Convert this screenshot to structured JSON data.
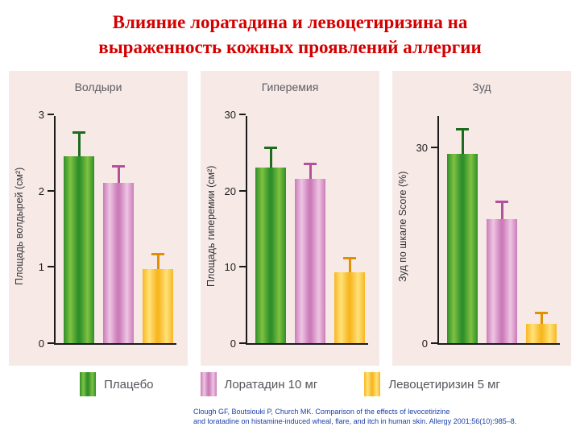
{
  "title": {
    "line1": "Влияние лоратадина и левоцетиризина на",
    "line2": "выраженность кожных проявлений аллергии",
    "color": "#d40000"
  },
  "citation": {
    "line1": "Clough GF, Boutsiouki P, Church MK. Comparison of the effects of levocetirizine",
    "line2": "and loratadine on histamine-induced wheal, flare, and itch in human skin. Allergy 2001;56(10):985–8.",
    "color": "#1b3faa"
  },
  "panel_bg": "#f7eae6",
  "legend": [
    {
      "key": "placebo",
      "label": "Плацебо",
      "light": "#7fc241",
      "dark": "#2f8f2b",
      "error": "#1d6b1d"
    },
    {
      "key": "loratadine-10mg",
      "label": "Лоратадин 10 мг",
      "light": "#eec5e4",
      "dark": "#cb7cb8",
      "error": "#b3529b"
    },
    {
      "key": "levocetirizine-5mg",
      "label": "Левоцетиризин 5 мг",
      "light": "#ffe27a",
      "dark": "#f7b723",
      "error": "#e09000"
    }
  ],
  "chart_data": [
    {
      "type": "bar",
      "title": "Волдыри",
      "ylabel": "Площадь волдырей (см²)",
      "ylim": [
        0,
        3
      ],
      "yticks": [
        {
          "v": 0,
          "label": "0"
        },
        {
          "v": 1,
          "label": "1"
        },
        {
          "v": 2,
          "label": "2"
        },
        {
          "v": 3,
          "label": "3"
        }
      ],
      "series": [
        "Плацебо",
        "Лоратадин 10 мг",
        "Левоцетиризин 5 мг"
      ],
      "values": [
        2.45,
        2.1,
        0.97
      ],
      "error_top": [
        2.75,
        2.3,
        1.15
      ]
    },
    {
      "type": "bar",
      "title": "Гиперемия",
      "ylabel": "Площадь гиперемии (см²)",
      "ylim": [
        0,
        30
      ],
      "yticks": [
        {
          "v": 0,
          "label": "0"
        },
        {
          "v": 10,
          "label": "10"
        },
        {
          "v": 20,
          "label": "20"
        },
        {
          "v": 30,
          "label": "30"
        }
      ],
      "series": [
        "Плацебо",
        "Лоратадин 10 мг",
        "Левоцетиризин 5 мг"
      ],
      "values": [
        23,
        21.5,
        9.3
      ],
      "error_top": [
        25.5,
        23.3,
        11
      ]
    },
    {
      "type": "bar",
      "title": "Зуд",
      "ylabel": "Зуд по шкале Score (%)",
      "ylim": [
        0,
        35
      ],
      "yticks": [
        {
          "v": 0,
          "label": "0"
        },
        {
          "v": 30,
          "label": "30"
        }
      ],
      "series": [
        "Плацебо",
        "Лоратадин 10 мг",
        "Левоцетиризин 5 мг"
      ],
      "values": [
        29,
        19,
        3
      ],
      "error_top": [
        32.5,
        21.5,
        4.5
      ]
    }
  ]
}
